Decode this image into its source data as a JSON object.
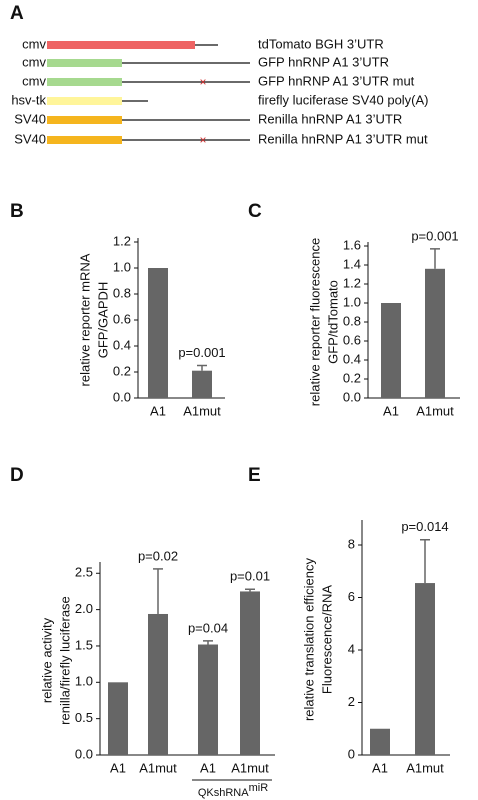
{
  "panel_labels": [
    "A",
    "B",
    "C",
    "D",
    "E"
  ],
  "diagram": {
    "rows": [
      {
        "promoter": "cmv",
        "color": "#ee6464",
        "mutation": false,
        "description": "tdTomato BGH 3’UTR"
      },
      {
        "promoter": "cmv",
        "color": "#a6d98f",
        "mutation": false,
        "description": "GFP hnRNP A1 3’UTR"
      },
      {
        "promoter": "cmv",
        "color": "#a6d98f",
        "mutation": true,
        "description": "GFP hnRNP A1 3’UTR mut"
      },
      {
        "promoter": "hsv-tk",
        "color": "#fff59a",
        "mutation": false,
        "description": "firefly luciferase SV40 poly(A)"
      },
      {
        "promoter": "SV40",
        "color": "#f5b51e",
        "mutation": false,
        "description": "Renilla hnRNP A1 3’UTR"
      },
      {
        "promoter": "SV40",
        "color": "#f5b51e",
        "mutation": true,
        "description": "Renilla hnRNP A1 3’UTR mut"
      }
    ]
  },
  "chart_data": [
    {
      "type": "bar",
      "ylabel": [
        "relative reporter mRNA",
        "GFP/GAPDH"
      ],
      "categories": [
        "A1",
        "A1mut"
      ],
      "values": [
        1.0,
        0.21
      ],
      "errors": [
        null,
        0.04
      ],
      "annotations": [
        null,
        "p=0.001"
      ],
      "color": "#666666",
      "ylim": [
        0,
        1.2
      ],
      "yticks": [
        {
          "value": 0,
          "label": "0.0"
        },
        0.2,
        0.4,
        0.6,
        0.8,
        {
          "value": 1,
          "label": "1.0"
        },
        1.2
      ]
    },
    {
      "type": "bar",
      "ylabel": [
        "relative reporter fluorescence",
        "GFP/tdTomato"
      ],
      "categories": [
        "A1",
        "A1mut"
      ],
      "values": [
        1.0,
        1.36
      ],
      "errors": [
        null,
        0.21
      ],
      "annotations": [
        null,
        "p=0.001"
      ],
      "color": "#666666",
      "ylim": [
        0,
        1.6
      ],
      "yticks": [
        {
          "value": 0,
          "label": "0.0"
        },
        0.2,
        0.4,
        0.6,
        0.8,
        {
          "value": 1,
          "label": "1.0"
        },
        1.2,
        1.4,
        1.6
      ]
    },
    {
      "type": "bar",
      "ylabel": [
        "relative activity",
        "renilla/firefly luciferase"
      ],
      "categories": [
        "A1",
        "A1mut",
        "A1",
        "A1mut"
      ],
      "values": [
        1.0,
        1.94,
        1.52,
        2.25
      ],
      "errors": [
        null,
        0.62,
        0.05,
        0.03
      ],
      "annotations": [
        null,
        "p=0.02",
        "p=0.04",
        "p=0.01"
      ],
      "group_label": "QKshRNA",
      "group_label_sup": "miR",
      "color": "#666666",
      "ylim": [
        0,
        2.6
      ],
      "yticks": [
        {
          "value": 0,
          "label": "0.0"
        },
        0.5,
        {
          "value": 1,
          "label": "1.0"
        },
        1.5,
        {
          "value": 2,
          "label": "2.0"
        },
        2.5
      ]
    },
    {
      "type": "bar",
      "ylabel": [
        "relative translation efficiency",
        "Fluorescence/RNA"
      ],
      "categories": [
        "A1",
        "A1mut"
      ],
      "values": [
        1.0,
        6.55
      ],
      "errors": [
        null,
        1.65
      ],
      "annotations": [
        null,
        "p=0.014"
      ],
      "color": "#666666",
      "ylim": [
        0,
        8.8
      ],
      "yticks": [
        0,
        2,
        4,
        6,
        8
      ]
    }
  ]
}
